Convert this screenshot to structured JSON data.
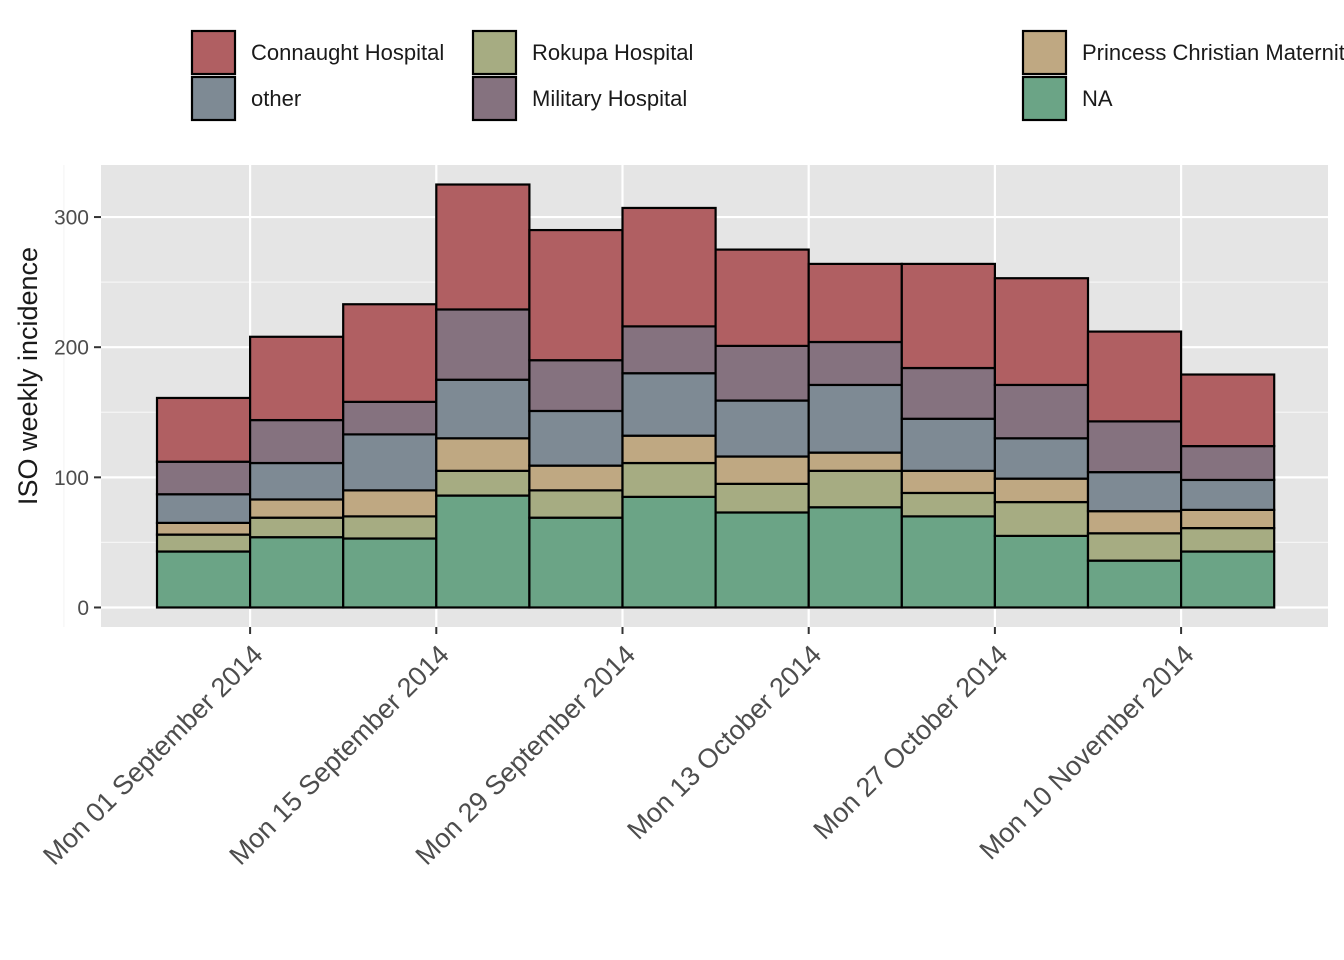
{
  "chart_data": {
    "type": "bar",
    "stacked": true,
    "ylabel": "ISO weekly incidence",
    "xlabel": "",
    "ylim": [
      -15,
      340
    ],
    "yticks": [
      0,
      100,
      200,
      300
    ],
    "grid": true,
    "legend_position": "top",
    "weeks": [
      "2014-09-01",
      "2014-09-08",
      "2014-09-15",
      "2014-09-22",
      "2014-09-29",
      "2014-10-06",
      "2014-10-13",
      "2014-10-20",
      "2014-10-27",
      "2014-11-03",
      "2014-11-10",
      "2014-11-17"
    ],
    "x_tick_labels": [
      "Mon 01 September 2014",
      "Mon 15 September 2014",
      "Mon 29 September 2014",
      "Mon 13 October 2014",
      "Mon 27 October 2014",
      "Mon 10 November 2014"
    ],
    "series": [
      {
        "name": "NA",
        "color": "#6ba486",
        "values": [
          43,
          54,
          53,
          86,
          69,
          85,
          73,
          77,
          70,
          55,
          36,
          43
        ]
      },
      {
        "name": "Rokupa Hospital",
        "color": "#a6ac82",
        "values": [
          13,
          15,
          17,
          19,
          21,
          26,
          22,
          28,
          18,
          26,
          21,
          18
        ]
      },
      {
        "name": "Princess Christian Maternity Hospital (PCMH)",
        "color": "#bfa882",
        "values": [
          9,
          14,
          20,
          25,
          19,
          21,
          21,
          14,
          17,
          18,
          17,
          14
        ]
      },
      {
        "name": "other",
        "color": "#7e8a94",
        "values": [
          22,
          28,
          43,
          45,
          42,
          48,
          43,
          52,
          40,
          31,
          30,
          23
        ]
      },
      {
        "name": "Military Hospital",
        "color": "#85727f",
        "values": [
          25,
          33,
          25,
          54,
          39,
          36,
          42,
          33,
          39,
          41,
          39,
          26
        ]
      },
      {
        "name": "Connaught Hospital",
        "color": "#b05f62",
        "values": [
          49,
          64,
          75,
          96,
          100,
          91,
          74,
          60,
          80,
          82,
          69,
          55
        ]
      }
    ],
    "legend_order": [
      "Connaught Hospital",
      "other",
      "Rokupa Hospital",
      "Military Hospital",
      "Princess Christian Maternity Hospital (PCMH)",
      "NA"
    ]
  }
}
